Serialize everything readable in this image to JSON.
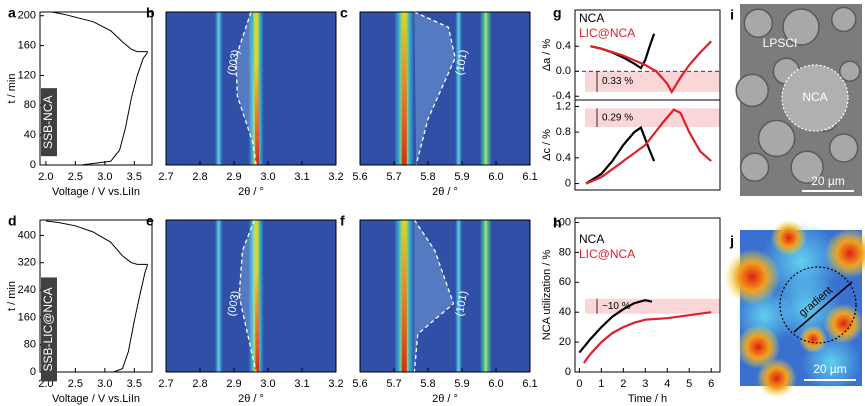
{
  "chart_data": [
    {
      "panel": "a",
      "type": "line",
      "ylabel": "t / min",
      "xlabel": "Voltage / V vs.LiIn",
      "annotation": "SSB-NCA",
      "xlim": [
        1.9,
        3.8
      ],
      "xticks": [
        {
          "value": 2.0,
          "label": "2.0"
        },
        2.5,
        {
          "value": 3.0,
          "label": "3.0"
        },
        3.5
      ],
      "ylim": [
        0,
        205
      ],
      "yticks": [
        0,
        40,
        80,
        120,
        160,
        200
      ],
      "series": [
        {
          "color": "#000000",
          "x": [
            2.6,
            3.1,
            3.25,
            3.35,
            3.45,
            3.55,
            3.65,
            3.72,
            3.72,
            3.55,
            3.45,
            3.3,
            3.1,
            2.8,
            2.5,
            2.3,
            2.1
          ],
          "values": [
            0,
            5,
            20,
            50,
            90,
            120,
            143,
            150,
            152,
            152,
            155,
            165,
            180,
            192,
            198,
            202,
            205
          ]
        }
      ]
    },
    {
      "panel": "b",
      "type": "heatmap",
      "xlabel": "2θ / °",
      "annotation": "(003)",
      "xlim": [
        2.7,
        3.2
      ],
      "xticks": [
        2.7,
        2.8,
        2.9,
        {
          "value": 3.0,
          "label": "3.0"
        },
        3.1,
        3.2
      ]
    },
    {
      "panel": "c",
      "type": "heatmap",
      "xlabel": "2θ / °",
      "annotation": "(101)",
      "xlim": [
        5.6,
        6.1
      ],
      "xticks": [
        5.6,
        5.7,
        5.8,
        5.9,
        {
          "value": 6.0,
          "label": "6.0"
        },
        6.1
      ]
    },
    {
      "panel": "d",
      "type": "line",
      "ylabel": "t / min",
      "xlabel": "Voltage / V vs.LiIn",
      "annotation": "SSB-LIC@NCA",
      "xlim": [
        1.9,
        3.8
      ],
      "xticks": [
        {
          "value": 2.0,
          "label": "2.0"
        },
        2.5,
        {
          "value": 3.0,
          "label": "3.0"
        },
        3.5
      ],
      "ylim": [
        0,
        445
      ],
      "yticks": [
        0,
        80,
        160,
        240,
        320,
        400
      ],
      "series": [
        {
          "color": "#000000",
          "x": [
            3.15,
            3.3,
            3.4,
            3.5,
            3.6,
            3.68,
            3.72,
            3.72,
            3.55,
            3.45,
            3.3,
            3.1,
            2.8,
            2.5,
            2.2,
            2.0
          ],
          "values": [
            0,
            10,
            60,
            150,
            230,
            290,
            312,
            315,
            315,
            320,
            340,
            380,
            410,
            428,
            438,
            442
          ]
        }
      ]
    },
    {
      "panel": "e",
      "type": "heatmap",
      "xlabel": "2θ / °",
      "annotation": "(003)",
      "xlim": [
        2.7,
        3.2
      ],
      "xticks": [
        2.7,
        2.8,
        2.9,
        {
          "value": 3.0,
          "label": "3.0"
        },
        3.1,
        3.2
      ]
    },
    {
      "panel": "f",
      "type": "heatmap",
      "xlabel": "2θ / °",
      "annotation": "(101)",
      "xlim": [
        5.6,
        6.1
      ],
      "xticks": [
        5.6,
        5.7,
        5.8,
        5.9,
        {
          "value": 6.0,
          "label": "6.0"
        },
        6.1
      ]
    },
    {
      "panel": "g",
      "type": "line",
      "ylabel": "Δa / %",
      "xlim": [
        -0.2,
        6.4
      ],
      "ylim": [
        -0.46,
        0.98
      ],
      "yticks": [
        -0.4,
        {
          "value": 0,
          "label": "0.0"
        },
        0.4
      ],
      "hline": 0,
      "bands": [
        {
          "from": -0.33,
          "to": 0,
          "label": "0.33 %"
        }
      ],
      "series": [
        {
          "name": "NCA",
          "color": "#000000",
          "x": [
            0.5,
            1.0,
            1.5,
            2.0,
            2.5,
            2.8,
            3.0,
            3.2,
            3.4
          ],
          "values": [
            0.4,
            0.36,
            0.3,
            0.22,
            0.12,
            0.05,
            0.18,
            0.4,
            0.6
          ]
        },
        {
          "name": "LIC@NCA",
          "color": "#e0202a",
          "x": [
            0.5,
            1.0,
            2.0,
            3.0,
            3.5,
            4.0,
            4.2,
            4.6,
            5.0,
            5.5,
            6.0
          ],
          "values": [
            0.4,
            0.36,
            0.25,
            0.1,
            0.0,
            -0.2,
            -0.33,
            -0.1,
            0.1,
            0.3,
            0.48
          ]
        }
      ]
    },
    {
      "type": "line",
      "ylabel": "Δc / %",
      "xlim": [
        -0.2,
        6.4
      ],
      "ylim": [
        -0.1,
        1.3
      ],
      "yticks": [
        0,
        0.4,
        0.8,
        1.2
      ],
      "bands": [
        {
          "from": 0.88,
          "to": 1.17,
          "label": "0.29 %"
        }
      ],
      "series": [
        {
          "color": "#000000",
          "x": [
            0.3,
            1.0,
            1.5,
            2.0,
            2.5,
            2.8,
            3.1,
            3.4
          ],
          "values": [
            0,
            0.15,
            0.35,
            0.6,
            0.8,
            0.87,
            0.6,
            0.35
          ]
        },
        {
          "color": "#e0202a",
          "x": [
            0.3,
            1.0,
            2.0,
            3.0,
            3.8,
            4.3,
            4.6,
            5.0,
            5.5,
            6.0
          ],
          "values": [
            0,
            0.1,
            0.35,
            0.6,
            0.95,
            1.15,
            1.1,
            0.8,
            0.5,
            0.35
          ]
        }
      ]
    },
    {
      "panel": "h",
      "type": "line",
      "ylabel": "NCA utilization / %",
      "xlabel": "Time / h",
      "xlim": [
        -0.2,
        6.4
      ],
      "xticks": [
        0,
        1,
        2,
        3,
        4,
        5,
        6
      ],
      "ylim": [
        0,
        103
      ],
      "yticks": [
        0,
        20,
        40,
        60,
        80,
        100
      ],
      "bands": [
        {
          "from": 39,
          "to": 49,
          "label": "~10 %"
        }
      ],
      "series": [
        {
          "name": "NCA",
          "color": "#000000",
          "x": [
            0,
            0.5,
            1,
            1.5,
            2,
            2.5,
            3,
            3.3
          ],
          "values": [
            13,
            22,
            30,
            37,
            42,
            46,
            48,
            47
          ]
        },
        {
          "name": "LIC@NCA",
          "color": "#e0202a",
          "x": [
            0.2,
            0.5,
            1,
            1.5,
            2,
            2.5,
            3,
            4,
            5,
            6
          ],
          "values": [
            6,
            12,
            20,
            26,
            30,
            33,
            35,
            36,
            38,
            40
          ]
        }
      ]
    }
  ],
  "images": [
    {
      "panel": "i",
      "labels": [
        "LPSCI",
        "NCA"
      ],
      "scale": "20 µm"
    },
    {
      "panel": "j",
      "labels": [
        "gradient"
      ],
      "scale": "20 µm"
    }
  ]
}
